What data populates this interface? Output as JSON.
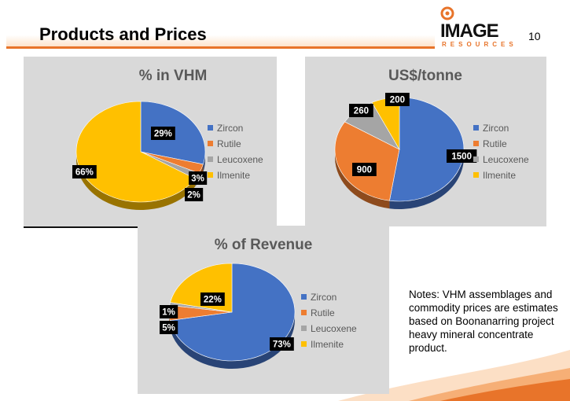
{
  "page": {
    "title": "Products and Prices",
    "page_number": "10"
  },
  "logo": {
    "name": "IMAGE",
    "tagline": "RESOURCES"
  },
  "notes": "Notes: VHM assemblages and commodity prices are estimates based on Boonanarring project heavy mineral concentrate product.",
  "colors": {
    "zircon": "#4472c4",
    "rutile": "#ed7d31",
    "leucoxene": "#a5a5a5",
    "ilmenite": "#ffc000",
    "accent": "#e8742a"
  },
  "chart_data": [
    {
      "type": "pie",
      "title": "% in VHM",
      "categories": [
        "Zircon",
        "Rutile",
        "Leucoxene",
        "Ilmenite"
      ],
      "values": [
        29,
        3,
        2,
        66
      ],
      "data_labels": [
        "29%",
        "3%",
        "2%",
        "66%"
      ],
      "legend_position": "right"
    },
    {
      "type": "pie",
      "title": "US$/tonne",
      "categories": [
        "Zircon",
        "Rutile",
        "Leucoxene",
        "Ilmenite"
      ],
      "values": [
        1500,
        900,
        260,
        200
      ],
      "data_labels": [
        "1500",
        "900",
        "260",
        "200"
      ],
      "legend_position": "right"
    },
    {
      "type": "pie",
      "title": "% of Revenue",
      "categories": [
        "Zircon",
        "Rutile",
        "Leucoxene",
        "Ilmenite"
      ],
      "values": [
        73,
        5,
        1,
        22
      ],
      "data_labels": [
        "73%",
        "5%",
        "1%",
        "22%"
      ],
      "legend_position": "right"
    }
  ]
}
